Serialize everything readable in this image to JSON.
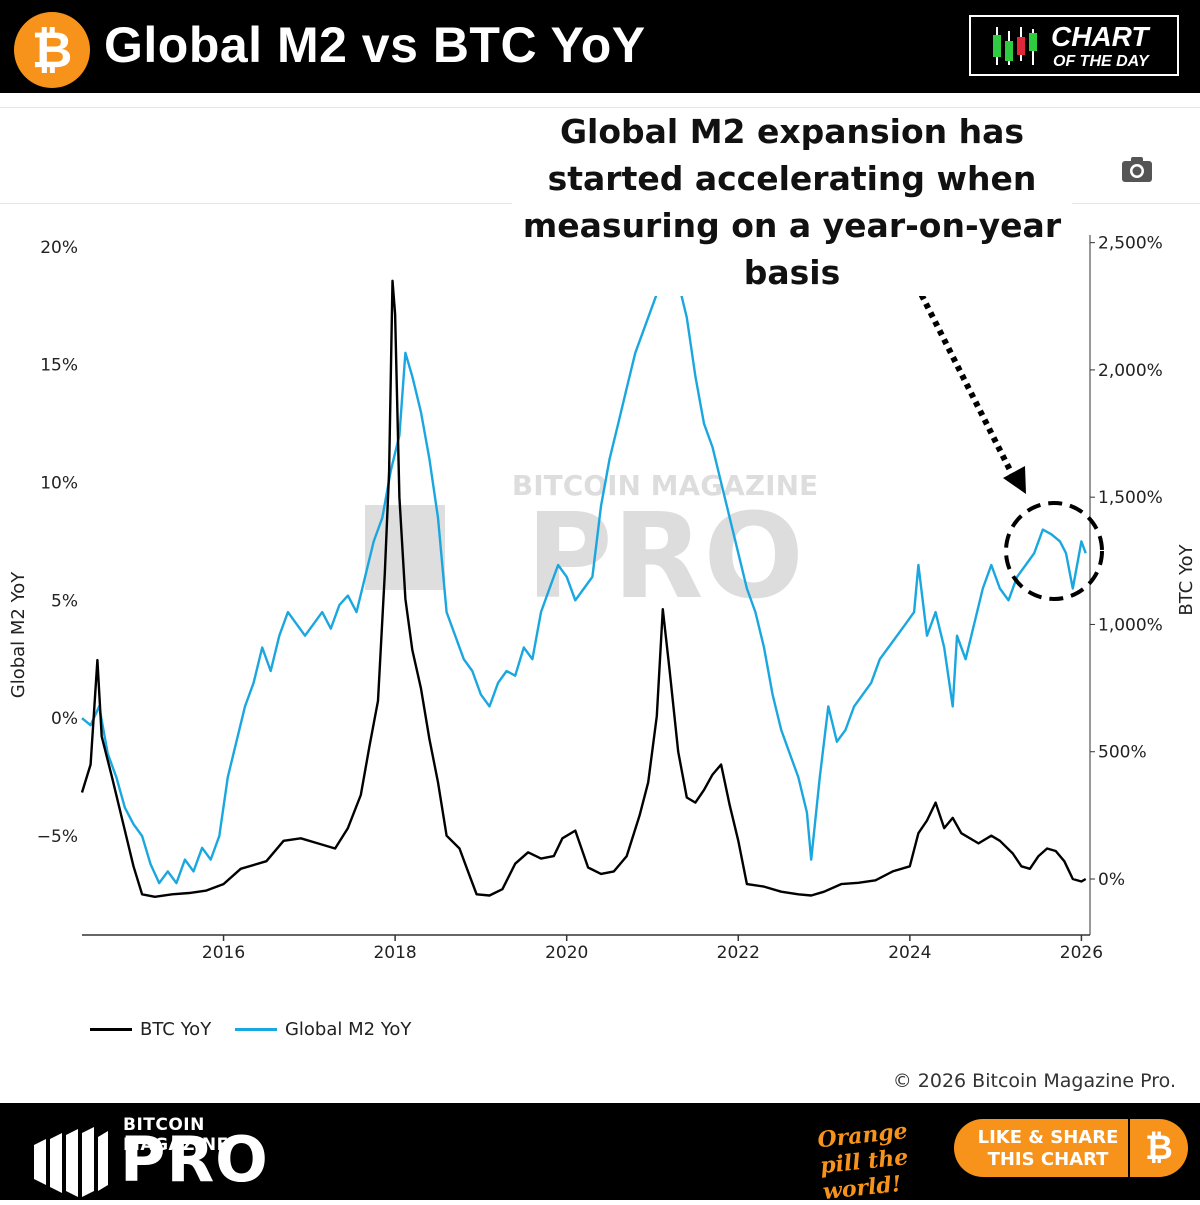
{
  "header": {
    "title": "Global M2 vs BTC YoY",
    "logo_glyph": "₿",
    "badge_line1": "CHART",
    "badge_line2": "OF THE DAY"
  },
  "annotation": {
    "text": "Global M2 expansion has started accelerating when measuring on a year-on-year basis"
  },
  "toolbar": {
    "camera_icon": "camera-icon"
  },
  "watermark": {
    "small": "BITCOIN MAGAZINE",
    "big": "PRO"
  },
  "colors": {
    "btc": "#000000",
    "m2": "#1aa7e0",
    "orange": "#f7931a"
  },
  "chart_data": {
    "type": "line",
    "x_ticks": [
      "2016",
      "2018",
      "2020",
      "2022",
      "2024",
      "2026"
    ],
    "x_tick_values": [
      2016,
      2018,
      2020,
      2022,
      2024,
      2026
    ],
    "xlim": [
      2014.35,
      2026.1
    ],
    "y_left": {
      "label": "Global M2 YoY",
      "ticks": [
        "20%",
        "15%",
        "10%",
        "5%",
        "0%",
        "−5%"
      ],
      "tick_values": [
        20,
        15,
        10,
        5,
        0,
        -5
      ],
      "lim": [
        -9.2,
        20.5
      ]
    },
    "y_right": {
      "label": "BTC YoY",
      "ticks": [
        "2,500%",
        "2,000%",
        "1,500%",
        "1,000%",
        "500%",
        "0%"
      ],
      "tick_values": [
        2500,
        2000,
        1500,
        1000,
        500,
        0
      ],
      "lim": [
        -220,
        2530
      ]
    },
    "grid": false,
    "legend_position": "bottom-left",
    "series": [
      {
        "name": "BTC YoY",
        "axis": "right",
        "points": [
          [
            2014.35,
            340
          ],
          [
            2014.45,
            450
          ],
          [
            2014.53,
            860
          ],
          [
            2014.58,
            560
          ],
          [
            2014.7,
            400
          ],
          [
            2014.85,
            190
          ],
          [
            2014.95,
            50
          ],
          [
            2015.05,
            -60
          ],
          [
            2015.2,
            -70
          ],
          [
            2015.4,
            -60
          ],
          [
            2015.6,
            -55
          ],
          [
            2015.8,
            -45
          ],
          [
            2016.0,
            -20
          ],
          [
            2016.2,
            40
          ],
          [
            2016.5,
            70
          ],
          [
            2016.7,
            150
          ],
          [
            2016.9,
            160
          ],
          [
            2017.1,
            140
          ],
          [
            2017.3,
            120
          ],
          [
            2017.45,
            200
          ],
          [
            2017.6,
            330
          ],
          [
            2017.7,
            520
          ],
          [
            2017.8,
            700
          ],
          [
            2017.88,
            1200
          ],
          [
            2017.93,
            1600
          ],
          [
            2017.97,
            2350
          ],
          [
            2018.0,
            2220
          ],
          [
            2018.05,
            1500
          ],
          [
            2018.12,
            1100
          ],
          [
            2018.2,
            900
          ],
          [
            2018.3,
            750
          ],
          [
            2018.4,
            550
          ],
          [
            2018.5,
            380
          ],
          [
            2018.6,
            170
          ],
          [
            2018.75,
            120
          ],
          [
            2018.85,
            30
          ],
          [
            2018.95,
            -60
          ],
          [
            2019.1,
            -65
          ],
          [
            2019.25,
            -40
          ],
          [
            2019.4,
            60
          ],
          [
            2019.55,
            105
          ],
          [
            2019.7,
            80
          ],
          [
            2019.85,
            90
          ],
          [
            2019.95,
            160
          ],
          [
            2020.1,
            190
          ],
          [
            2020.25,
            45
          ],
          [
            2020.4,
            20
          ],
          [
            2020.55,
            30
          ],
          [
            2020.7,
            90
          ],
          [
            2020.85,
            250
          ],
          [
            2020.95,
            380
          ],
          [
            2021.05,
            640
          ],
          [
            2021.12,
            1060
          ],
          [
            2021.2,
            820
          ],
          [
            2021.3,
            500
          ],
          [
            2021.4,
            320
          ],
          [
            2021.5,
            300
          ],
          [
            2021.6,
            350
          ],
          [
            2021.7,
            410
          ],
          [
            2021.8,
            450
          ],
          [
            2021.9,
            290
          ],
          [
            2022.0,
            150
          ],
          [
            2022.1,
            -20
          ],
          [
            2022.3,
            -30
          ],
          [
            2022.5,
            -50
          ],
          [
            2022.7,
            -60
          ],
          [
            2022.85,
            -65
          ],
          [
            2023.0,
            -50
          ],
          [
            2023.2,
            -20
          ],
          [
            2023.4,
            -15
          ],
          [
            2023.6,
            -5
          ],
          [
            2023.8,
            30
          ],
          [
            2024.0,
            50
          ],
          [
            2024.1,
            180
          ],
          [
            2024.2,
            230
          ],
          [
            2024.3,
            300
          ],
          [
            2024.4,
            200
          ],
          [
            2024.5,
            240
          ],
          [
            2024.6,
            180
          ],
          [
            2024.8,
            140
          ],
          [
            2024.95,
            170
          ],
          [
            2025.05,
            150
          ],
          [
            2025.2,
            100
          ],
          [
            2025.3,
            50
          ],
          [
            2025.4,
            40
          ],
          [
            2025.5,
            90
          ],
          [
            2025.6,
            120
          ],
          [
            2025.7,
            110
          ],
          [
            2025.8,
            70
          ],
          [
            2025.9,
            0
          ],
          [
            2026.0,
            -10
          ],
          [
            2026.05,
            0
          ]
        ]
      },
      {
        "name": "Global M2 YoY",
        "axis": "left",
        "points": [
          [
            2014.35,
            0.0
          ],
          [
            2014.45,
            -0.3
          ],
          [
            2014.55,
            0.5
          ],
          [
            2014.65,
            -1.5
          ],
          [
            2014.75,
            -2.5
          ],
          [
            2014.85,
            -3.8
          ],
          [
            2014.95,
            -4.5
          ],
          [
            2015.05,
            -5.0
          ],
          [
            2015.15,
            -6.2
          ],
          [
            2015.25,
            -7.0
          ],
          [
            2015.35,
            -6.5
          ],
          [
            2015.45,
            -7.0
          ],
          [
            2015.55,
            -6.0
          ],
          [
            2015.65,
            -6.5
          ],
          [
            2015.75,
            -5.5
          ],
          [
            2015.85,
            -6.0
          ],
          [
            2015.95,
            -5.0
          ],
          [
            2016.05,
            -2.5
          ],
          [
            2016.15,
            -1.0
          ],
          [
            2016.25,
            0.5
          ],
          [
            2016.35,
            1.5
          ],
          [
            2016.45,
            3.0
          ],
          [
            2016.55,
            2.0
          ],
          [
            2016.65,
            3.5
          ],
          [
            2016.75,
            4.5
          ],
          [
            2016.85,
            4.0
          ],
          [
            2016.95,
            3.5
          ],
          [
            2017.05,
            4.0
          ],
          [
            2017.15,
            4.5
          ],
          [
            2017.25,
            3.8
          ],
          [
            2017.35,
            4.8
          ],
          [
            2017.45,
            5.2
          ],
          [
            2017.55,
            4.5
          ],
          [
            2017.65,
            6.0
          ],
          [
            2017.75,
            7.5
          ],
          [
            2017.85,
            8.5
          ],
          [
            2017.95,
            10.5
          ],
          [
            2018.05,
            12.0
          ],
          [
            2018.12,
            15.5
          ],
          [
            2018.2,
            14.5
          ],
          [
            2018.3,
            13.0
          ],
          [
            2018.4,
            11.0
          ],
          [
            2018.5,
            8.5
          ],
          [
            2018.6,
            4.5
          ],
          [
            2018.7,
            3.5
          ],
          [
            2018.8,
            2.5
          ],
          [
            2018.9,
            2.0
          ],
          [
            2019.0,
            1.0
          ],
          [
            2019.1,
            0.5
          ],
          [
            2019.2,
            1.5
          ],
          [
            2019.3,
            2.0
          ],
          [
            2019.4,
            1.8
          ],
          [
            2019.5,
            3.0
          ],
          [
            2019.6,
            2.5
          ],
          [
            2019.7,
            4.5
          ],
          [
            2019.8,
            5.5
          ],
          [
            2019.9,
            6.5
          ],
          [
            2020.0,
            6.0
          ],
          [
            2020.1,
            5.0
          ],
          [
            2020.2,
            5.5
          ],
          [
            2020.3,
            6.0
          ],
          [
            2020.4,
            9.0
          ],
          [
            2020.5,
            11.0
          ],
          [
            2020.6,
            12.5
          ],
          [
            2020.7,
            14.0
          ],
          [
            2020.8,
            15.5
          ],
          [
            2020.9,
            16.5
          ],
          [
            2021.0,
            17.5
          ],
          [
            2021.1,
            18.5
          ],
          [
            2021.2,
            19.0
          ],
          [
            2021.3,
            18.5
          ],
          [
            2021.4,
            17.0
          ],
          [
            2021.5,
            14.5
          ],
          [
            2021.6,
            12.5
          ],
          [
            2021.7,
            11.5
          ],
          [
            2021.8,
            10.0
          ],
          [
            2021.9,
            8.5
          ],
          [
            2022.0,
            7.0
          ],
          [
            2022.1,
            5.5
          ],
          [
            2022.2,
            4.5
          ],
          [
            2022.3,
            3.0
          ],
          [
            2022.4,
            1.0
          ],
          [
            2022.5,
            -0.5
          ],
          [
            2022.6,
            -1.5
          ],
          [
            2022.7,
            -2.5
          ],
          [
            2022.8,
            -4.0
          ],
          [
            2022.85,
            -6.0
          ],
          [
            2022.95,
            -2.5
          ],
          [
            2023.05,
            0.5
          ],
          [
            2023.15,
            -1.0
          ],
          [
            2023.25,
            -0.5
          ],
          [
            2023.35,
            0.5
          ],
          [
            2023.45,
            1.0
          ],
          [
            2023.55,
            1.5
          ],
          [
            2023.65,
            2.5
          ],
          [
            2023.75,
            3.0
          ],
          [
            2023.85,
            3.5
          ],
          [
            2023.95,
            4.0
          ],
          [
            2024.05,
            4.5
          ],
          [
            2024.1,
            6.5
          ],
          [
            2024.2,
            3.5
          ],
          [
            2024.3,
            4.5
          ],
          [
            2024.4,
            3.0
          ],
          [
            2024.5,
            0.5
          ],
          [
            2024.55,
            3.5
          ],
          [
            2024.65,
            2.5
          ],
          [
            2024.75,
            4.0
          ],
          [
            2024.85,
            5.5
          ],
          [
            2024.95,
            6.5
          ],
          [
            2025.05,
            5.5
          ],
          [
            2025.15,
            5.0
          ],
          [
            2025.25,
            6.0
          ],
          [
            2025.35,
            6.5
          ],
          [
            2025.45,
            7.0
          ],
          [
            2025.55,
            8.0
          ],
          [
            2025.65,
            7.8
          ],
          [
            2025.75,
            7.5
          ],
          [
            2025.82,
            7.0
          ],
          [
            2025.9,
            5.5
          ],
          [
            2025.95,
            6.5
          ],
          [
            2026.0,
            7.5
          ],
          [
            2026.05,
            7.0
          ]
        ]
      }
    ]
  },
  "legend": {
    "btc": "BTC YoY",
    "m2": "Global M2 YoY"
  },
  "footer": {
    "copyright": "© 2026 Bitcoin Magazine Pro.",
    "brand_small": "BITCOIN MAGAZINE",
    "brand_big": "PRO",
    "tagline": "Orange pill the world!",
    "share_label": "LIKE & SHARE THIS CHART",
    "share_glyph": "₿"
  }
}
